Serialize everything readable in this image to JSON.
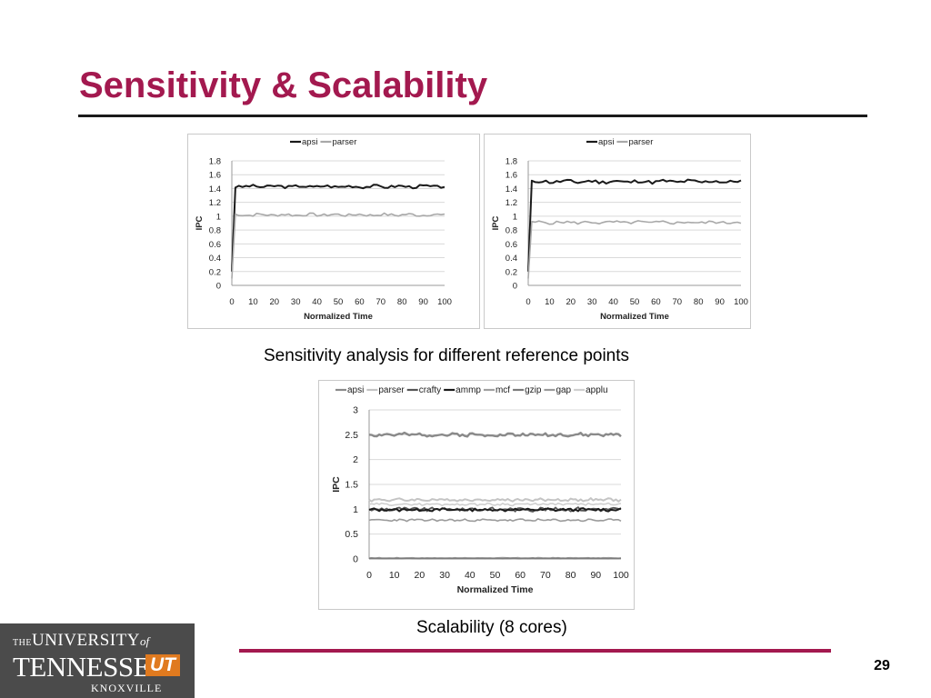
{
  "slide": {
    "title": "Sensitivity & Scalability",
    "page_number": "29",
    "caption_top": "Sensitivity analysis for different reference points",
    "caption_bottom": "Scalability (8 cores)",
    "accent_color": "#a3194f"
  },
  "logo": {
    "the": "THE",
    "university": "UNIVERSITY",
    "of": "of",
    "tennessee": "TENNESSEE",
    "ut": "UT",
    "knoxville": "KNOXVILLE",
    "background": "#4b4b4b",
    "ut_color": "#e07a1f"
  },
  "chart_data": [
    {
      "type": "line",
      "xlabel": "Normalized Time",
      "ylabel": "IPC",
      "xlim": [
        0,
        100
      ],
      "ylim": [
        0,
        1.8
      ],
      "xticks": [
        0,
        10,
        20,
        30,
        40,
        50,
        60,
        70,
        80,
        90,
        100
      ],
      "yticks": [
        0,
        0.2,
        0.4,
        0.6,
        0.8,
        1,
        1.2,
        1.4,
        1.6,
        1.8
      ],
      "ytick_labels": [
        "0",
        "0.2",
        "0.4",
        "0.6",
        "0.8",
        "1",
        "1.2",
        "1.4",
        "1.6",
        "1.8"
      ],
      "grid": true,
      "legend_position": "top",
      "series": [
        {
          "name": "apsi",
          "color": "#1a1a1a",
          "width": 2,
          "start": 0.2,
          "level": 1.43,
          "amp": 0.02,
          "seed": 3
        },
        {
          "name": "parser",
          "color": "#a8a8a8",
          "width": 1.6,
          "start": 0.1,
          "level": 1.02,
          "amp": 0.02,
          "seed": 7
        }
      ]
    },
    {
      "type": "line",
      "xlabel": "Normalized Time",
      "ylabel": "IPC",
      "xlim": [
        0,
        100
      ],
      "ylim": [
        0,
        1.8
      ],
      "xticks": [
        0,
        10,
        20,
        30,
        40,
        50,
        60,
        70,
        80,
        90,
        100
      ],
      "yticks": [
        0,
        0.2,
        0.4,
        0.6,
        0.8,
        1,
        1.2,
        1.4,
        1.6,
        1.8
      ],
      "ytick_labels": [
        "0",
        "0.2",
        "0.4",
        "0.6",
        "0.8",
        "1",
        "1.2",
        "1.4",
        "1.6",
        "1.8"
      ],
      "grid": true,
      "legend_position": "top",
      "series": [
        {
          "name": "apsi",
          "color": "#1a1a1a",
          "width": 2,
          "start": 0.2,
          "level": 1.5,
          "amp": 0.025,
          "seed": 11
        },
        {
          "name": "parser",
          "color": "#a8a8a8",
          "width": 1.6,
          "start": 0.1,
          "level": 0.91,
          "amp": 0.02,
          "seed": 5
        }
      ]
    },
    {
      "type": "line",
      "xlabel": "Normalized Time",
      "ylabel": "IPC",
      "xlim": [
        0,
        100
      ],
      "ylim": [
        0,
        3
      ],
      "xticks": [
        0,
        10,
        20,
        30,
        40,
        50,
        60,
        70,
        80,
        90,
        100
      ],
      "yticks": [
        0,
        0.5,
        1,
        1.5,
        2,
        2.5,
        3
      ],
      "ytick_labels": [
        "0",
        "0.5",
        "1",
        "1.5",
        "2",
        "2.5",
        "3"
      ],
      "grid": true,
      "legend_position": "top",
      "series": [
        {
          "name": "apsi",
          "color": "#8a8a8a",
          "width": 2.4,
          "start": 2.5,
          "level": 2.5,
          "amp": 0.03,
          "seed": 2
        },
        {
          "name": "parser",
          "color": "#c4c4c4",
          "width": 2,
          "start": 1.19,
          "level": 1.19,
          "amp": 0.025,
          "seed": 4
        },
        {
          "name": "crafty",
          "color": "#555555",
          "width": 1.8,
          "start": 1.0,
          "level": 1.0,
          "amp": 0.035,
          "seed": 9
        },
        {
          "name": "ammp",
          "color": "#1a1a1a",
          "width": 2,
          "start": 0.99,
          "level": 0.99,
          "amp": 0.025,
          "seed": 13
        },
        {
          "name": "mcf",
          "color": "#a0a0a0",
          "width": 1.6,
          "start": 0.02,
          "level": 0.02,
          "amp": 0.004,
          "seed": 17
        },
        {
          "name": "gzip",
          "color": "#7a7a7a",
          "width": 1.6,
          "start": 0.01,
          "level": 0.01,
          "amp": 0.004,
          "seed": 19
        },
        {
          "name": "gap",
          "color": "#9a9a9a",
          "width": 1.6,
          "start": 0.78,
          "level": 0.78,
          "amp": 0.02,
          "seed": 23
        },
        {
          "name": "applu",
          "color": "#cfcfcf",
          "width": 1.6,
          "start": 1.1,
          "level": 1.1,
          "amp": 0.02,
          "seed": 29
        }
      ]
    }
  ]
}
